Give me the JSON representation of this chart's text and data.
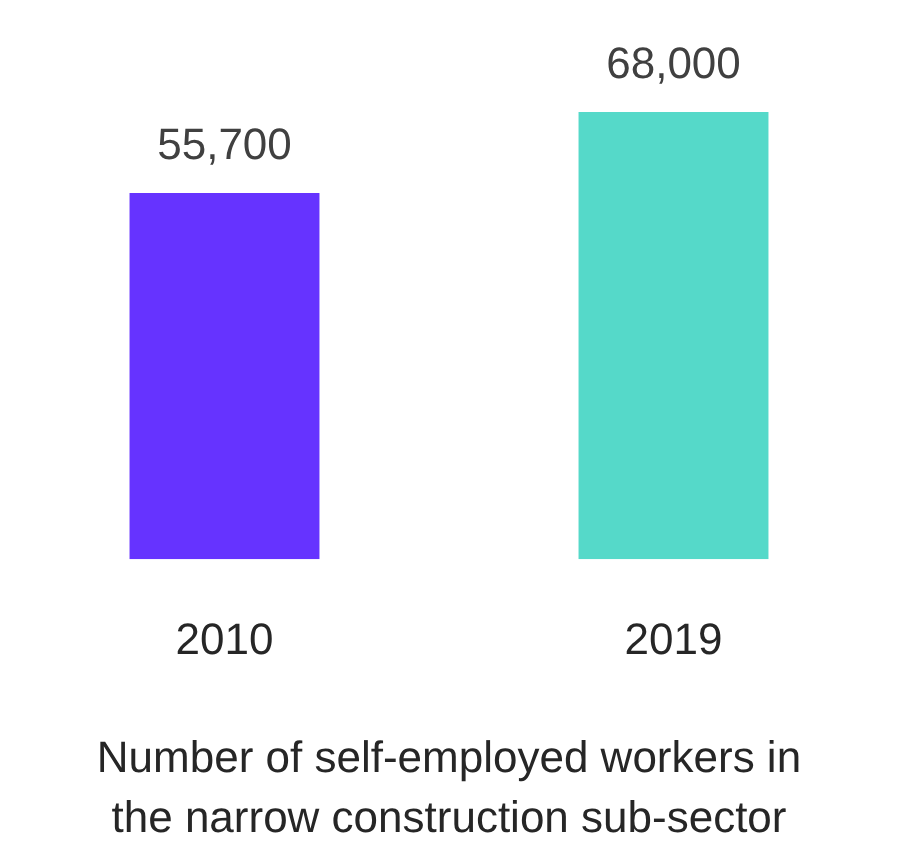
{
  "chart_data": {
    "type": "bar",
    "categories": [
      "2010",
      "2019"
    ],
    "values": [
      55700,
      68000
    ],
    "colors": [
      "#6633ff",
      "#55d9c9"
    ],
    "value_labels": [
      "55,700",
      "68,000"
    ],
    "grid": false,
    "legend": false,
    "tick_labels": "x",
    "xlabel": "Number of self-employed workers in the narrow construction sub-sector"
  }
}
